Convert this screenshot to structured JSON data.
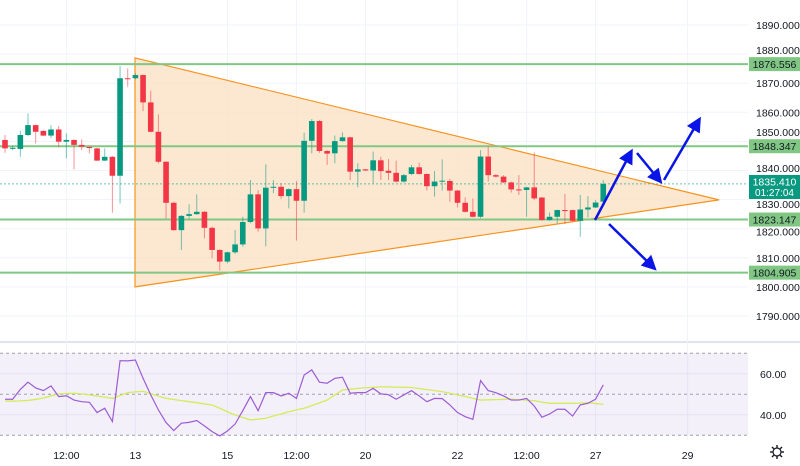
{
  "chart_data": {
    "type": "candlestick",
    "interval_note": "",
    "colors": {
      "up": "#089981",
      "down": "#f23645",
      "levels": "#81c784",
      "pattern_fill": "#fce3c8",
      "pattern_stroke": "#f7931e",
      "arrows": "#0a14e6",
      "rsi": "#9c5cd4",
      "rsi_ma": "#d4ec5a",
      "current_price": "#089981"
    },
    "price_axis": {
      "ylim": [
        1785,
        1898
      ],
      "ticks": [
        "1790.000",
        "1800.000",
        "1810.000",
        "1820.000",
        "1830.000",
        "1840.000",
        "1850.000",
        "1860.000",
        "1870.000",
        "1880.000",
        "1890.000"
      ]
    },
    "time_axis": {
      "ticks": [
        {
          "bar": 8,
          "label": "12:00"
        },
        {
          "bar": 17,
          "label": "13"
        },
        {
          "bar": 29,
          "label": "15"
        },
        {
          "bar": 38,
          "label": "12:00"
        },
        {
          "bar": 47,
          "label": "20"
        },
        {
          "bar": 59,
          "label": "22"
        },
        {
          "bar": 68,
          "label": "12:00"
        },
        {
          "bar": 77,
          "label": "27"
        },
        {
          "bar": 89,
          "label": "29"
        }
      ]
    },
    "ohlc": [
      [
        1850.5,
        1852.2,
        1846.1,
        1847.6
      ],
      [
        1847.6,
        1848.5,
        1847.0,
        1847.8
      ],
      [
        1847.4,
        1853.6,
        1844.7,
        1852.2
      ],
      [
        1852.2,
        1859.6,
        1851.8,
        1855.6
      ],
      [
        1855.6,
        1855.8,
        1849.3,
        1853.3
      ],
      [
        1853.6,
        1853.8,
        1851.8,
        1852.0
      ],
      [
        1852.0,
        1855.6,
        1851.1,
        1854.1
      ],
      [
        1854.1,
        1855.3,
        1848.0,
        1849.9
      ],
      [
        1849.9,
        1852.8,
        1844.2,
        1850.5
      ],
      [
        1850.5,
        1850.7,
        1840.4,
        1848.8
      ],
      [
        1848.8,
        1850.7,
        1847.0,
        1848.2
      ],
      [
        1848.1,
        1848.2,
        1845.9,
        1847.7
      ],
      [
        1847.6,
        1847.8,
        1843.3,
        1843.4
      ],
      [
        1843.4,
        1847.6,
        1843.3,
        1844.7
      ],
      [
        1844.7,
        1845.0,
        1825.5,
        1838.2
      ],
      [
        1838.2,
        1875.9,
        1828.7,
        1871.7
      ],
      [
        1871.7,
        1875.1,
        1868.8,
        1871.6
      ],
      [
        1871.7,
        1873.4,
        1871.4,
        1872.8
      ],
      [
        1872.8,
        1873.0,
        1860.4,
        1863.4
      ],
      [
        1863.4,
        1867.4,
        1853.1,
        1853.3
      ],
      [
        1853.3,
        1859.3,
        1842.4,
        1843.0
      ],
      [
        1843.0,
        1843.2,
        1823.5,
        1828.9
      ],
      [
        1828.9,
        1829.3,
        1819.3,
        1819.5
      ],
      [
        1819.5,
        1824.7,
        1812.7,
        1824.4
      ],
      [
        1824.4,
        1828.4,
        1823.5,
        1825.0
      ],
      [
        1825.0,
        1831.8,
        1824.7,
        1825.8
      ],
      [
        1825.8,
        1826.1,
        1816.7,
        1820.3
      ],
      [
        1820.3,
        1820.7,
        1809.8,
        1812.7
      ],
      [
        1812.7,
        1812.9,
        1805.6,
        1808.7
      ],
      [
        1808.7,
        1812.1,
        1808.1,
        1811.9
      ],
      [
        1811.9,
        1819.5,
        1811.3,
        1814.6
      ],
      [
        1814.6,
        1824.1,
        1813.8,
        1822.3
      ],
      [
        1822.3,
        1836.7,
        1821.8,
        1831.8
      ],
      [
        1831.8,
        1833.3,
        1819.0,
        1820.1
      ],
      [
        1820.1,
        1842.1,
        1814.0,
        1834.1
      ],
      [
        1834.1,
        1836.7,
        1832.2,
        1834.4
      ],
      [
        1834.4,
        1835.6,
        1830.2,
        1831.2
      ],
      [
        1831.2,
        1833.9,
        1827.0,
        1833.6
      ],
      [
        1833.6,
        1836.4,
        1815.9,
        1829.6
      ],
      [
        1829.6,
        1853.0,
        1825.5,
        1850.2
      ],
      [
        1850.2,
        1857.7,
        1845.9,
        1857.0
      ],
      [
        1857.0,
        1857.3,
        1846.1,
        1846.7
      ],
      [
        1846.7,
        1847.0,
        1841.9,
        1845.8
      ],
      [
        1845.9,
        1852.0,
        1842.5,
        1850.1
      ],
      [
        1850.1,
        1853.1,
        1849.9,
        1851.4
      ],
      [
        1851.4,
        1851.6,
        1836.7,
        1839.6
      ],
      [
        1839.6,
        1842.5,
        1834.2,
        1840.4
      ],
      [
        1840.4,
        1840.5,
        1839.8,
        1840.0
      ],
      [
        1840.0,
        1846.5,
        1835.6,
        1843.5
      ],
      [
        1843.5,
        1844.7,
        1836.7,
        1839.8
      ],
      [
        1839.9,
        1843.9,
        1836.7,
        1839.2
      ],
      [
        1839.2,
        1843.4,
        1835.9,
        1836.2
      ],
      [
        1836.2,
        1838.8,
        1835.8,
        1838.4
      ],
      [
        1838.8,
        1841.9,
        1838.4,
        1841.1
      ],
      [
        1841.1,
        1842.7,
        1838.6,
        1838.8
      ],
      [
        1838.8,
        1839.0,
        1833.1,
        1834.6
      ],
      [
        1834.6,
        1839.8,
        1831.0,
        1836.2
      ],
      [
        1836.4,
        1843.8,
        1833.1,
        1836.5
      ],
      [
        1836.4,
        1837.1,
        1829.3,
        1833.1
      ],
      [
        1833.1,
        1833.3,
        1827.3,
        1828.9
      ],
      [
        1828.9,
        1830.8,
        1825.6,
        1825.8
      ],
      [
        1825.8,
        1830.4,
        1823.9,
        1824.1
      ],
      [
        1824.1,
        1847.0,
        1823.6,
        1844.8
      ],
      [
        1844.8,
        1848.2,
        1836.2,
        1838.4
      ],
      [
        1838.4,
        1838.8,
        1837.6,
        1837.9
      ],
      [
        1837.9,
        1838.4,
        1835.7,
        1835.9
      ],
      [
        1835.9,
        1836.2,
        1832.4,
        1833.5
      ],
      [
        1833.5,
        1838.4,
        1831.6,
        1833.3
      ],
      [
        1833.3,
        1834.4,
        1824.1,
        1834.2
      ],
      [
        1834.2,
        1846.2,
        1829.8,
        1830.4
      ],
      [
        1830.7,
        1830.9,
        1822.7,
        1823.0
      ],
      [
        1823.0,
        1825.6,
        1822.7,
        1824.1
      ],
      [
        1824.1,
        1826.6,
        1821.8,
        1826.4
      ],
      [
        1826.4,
        1831.9,
        1821.6,
        1826.3
      ],
      [
        1826.4,
        1826.6,
        1822.4,
        1822.7
      ],
      [
        1822.7,
        1831.6,
        1817.2,
        1826.6
      ],
      [
        1826.6,
        1831.2,
        1823.9,
        1827.3
      ],
      [
        1827.3,
        1829.9,
        1827.1,
        1829.0
      ],
      [
        1829.3,
        1836.7,
        1828.7,
        1835.41
      ]
    ],
    "levels": [
      "1876.556",
      "1848.347",
      "1823.147",
      "1804.905"
    ],
    "current_price": {
      "price": "1835.410",
      "countdown": "01:27:04"
    },
    "triangle": [
      [
        16.95,
        1878.7
      ],
      [
        16.95,
        1800.0
      ],
      [
        93.1,
        1829.9
      ]
    ],
    "rsi": {
      "ylim": [
        25,
        72
      ],
      "ticks": [
        "60.00",
        "40.00"
      ],
      "bands": [
        70,
        50,
        30
      ],
      "values": [
        47.6,
        47.6,
        52.4,
        55.9,
        53.1,
        51.8,
        54.1,
        48.9,
        49.3,
        47.2,
        46.4,
        46.1,
        41.1,
        43.2,
        36.7,
        66.4,
        66.3,
        66.7,
        57.8,
        49.7,
        42.4,
        36.2,
        32.3,
        35.9,
        36.3,
        37.2,
        34.6,
        31.8,
        29.7,
        32.1,
        35.5,
        42.0,
        48.9,
        42.0,
        50.8,
        50.8,
        49.2,
        50.5,
        48.0,
        59.4,
        61.9,
        55.9,
        55.4,
        57.8,
        58.3,
        50.5,
        50.8,
        50.8,
        52.9,
        50.2,
        49.8,
        47.6,
        49.7,
        51.8,
        49.2,
        46.4,
        48.0,
        47.9,
        44.8,
        41.1,
        39.1,
        37.8,
        56.7,
        51.8,
        50.8,
        49.2,
        47.2,
        47.2,
        48.0,
        44.3,
        38.8,
        40.4,
        42.7,
        42.7,
        39.4,
        44.8,
        45.6,
        47.6,
        54.6
      ],
      "ma": [
        46.7,
        46.7,
        46.8,
        47.0,
        47.5,
        48.2,
        49.2,
        50.2,
        50.4,
        50.5,
        50.2,
        49.7,
        49.2,
        48.6,
        48.0,
        49.4,
        50.8,
        51.2,
        51.5,
        50.3,
        49.1,
        48.0,
        47.5,
        46.9,
        46.4,
        45.9,
        45.3,
        44.8,
        43.2,
        41.5,
        39.9,
        38.7,
        37.5,
        37.9,
        38.3,
        39.4,
        40.4,
        41.5,
        42.4,
        43.2,
        44.5,
        45.8,
        47.2,
        49.7,
        52.1,
        52.5,
        52.9,
        53.2,
        53.4,
        53.7,
        53.6,
        53.5,
        53.4,
        53.3,
        52.8,
        52.3,
        51.8,
        51.3,
        50.5,
        49.7,
        48.9,
        48.0,
        47.2,
        47.3,
        47.4,
        47.5,
        47.6,
        47.4,
        47.1,
        46.9,
        46.2,
        45.6,
        45.6,
        45.6,
        45.6,
        45.7,
        45.9,
        45.5,
        45.1
      ]
    }
  },
  "icons": {
    "settings": "gear-icon"
  }
}
